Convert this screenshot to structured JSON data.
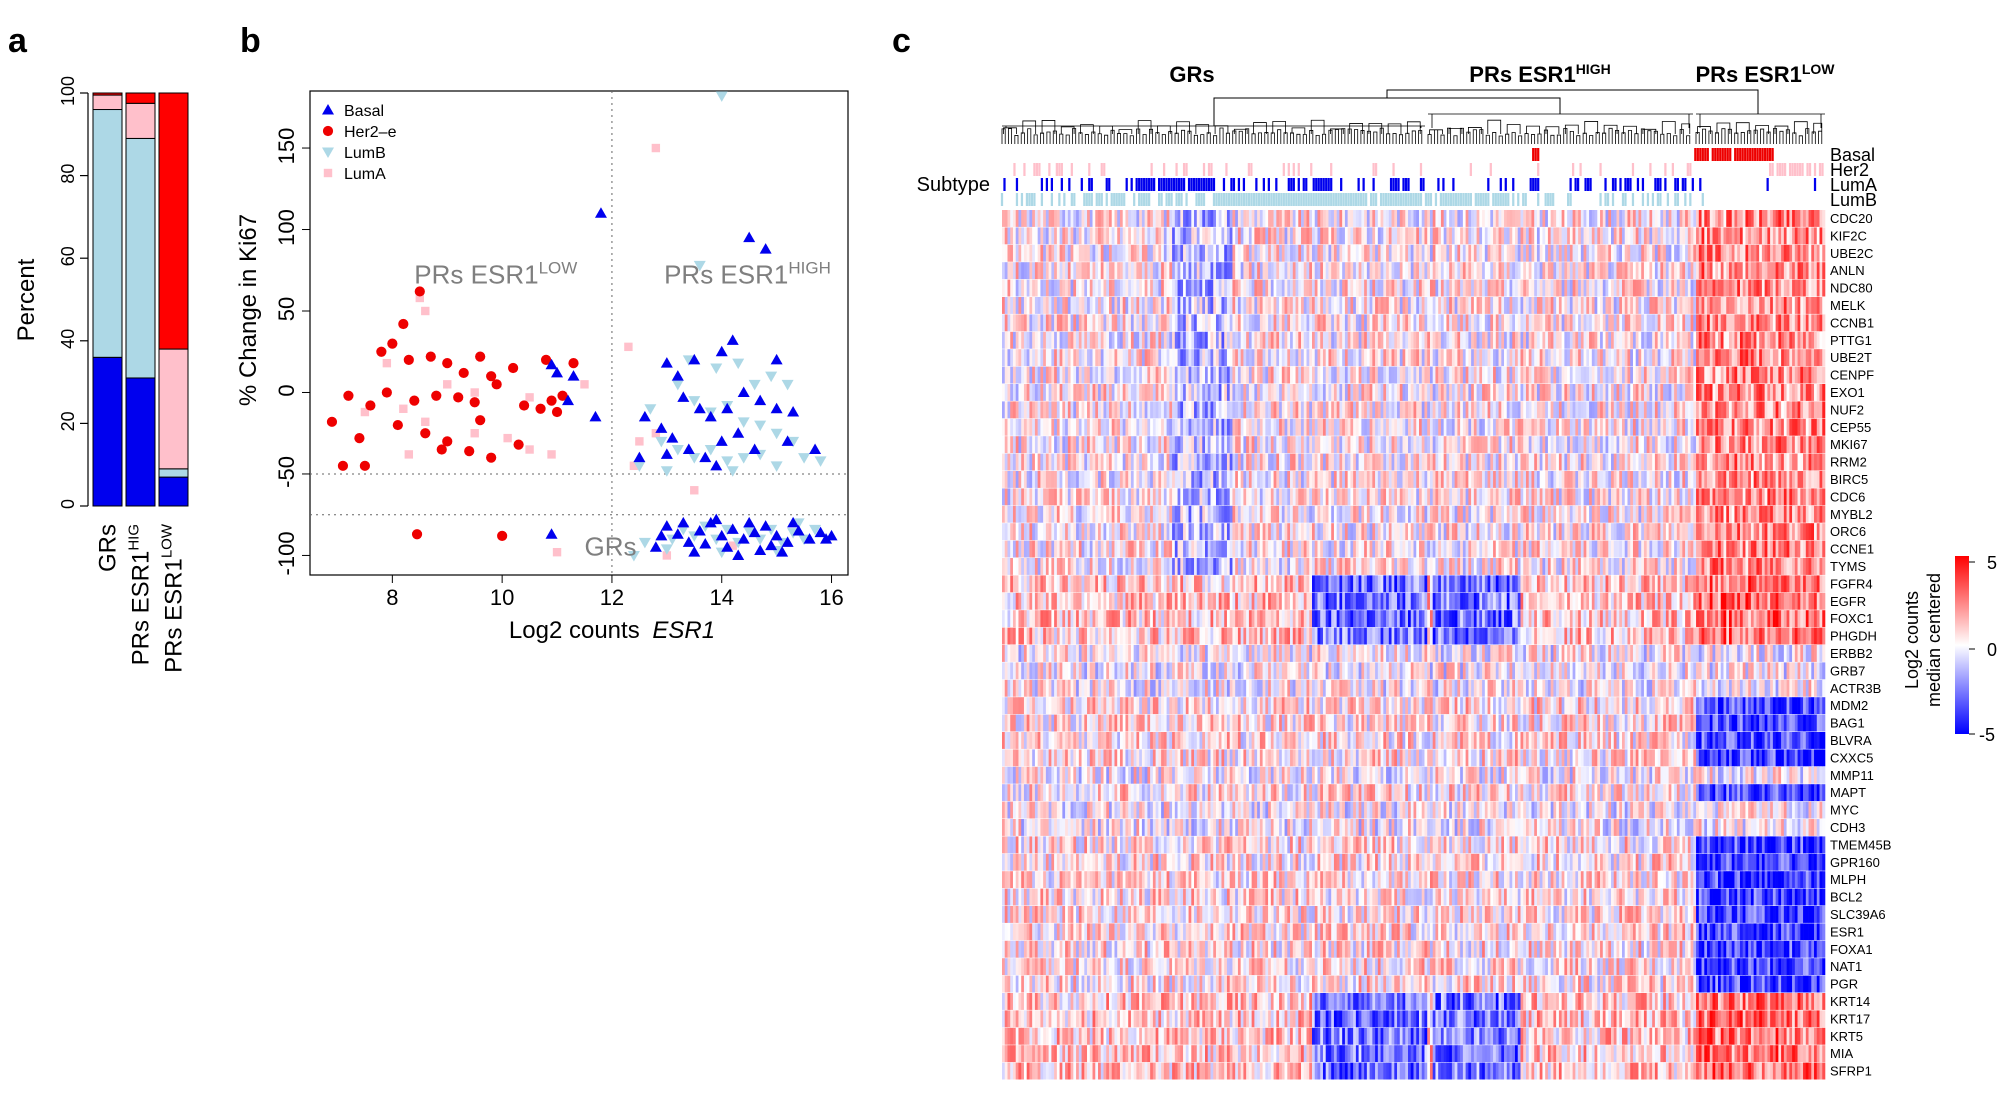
{
  "panel_labels": [
    "a",
    "b",
    "c"
  ],
  "chart_data": [
    {
      "id": "a",
      "type": "bar",
      "stacked": true,
      "ylabel": "Percent",
      "ylim": [
        0,
        100
      ],
      "yticks": [
        0,
        20,
        40,
        60,
        80,
        100
      ],
      "categories": [
        {
          "base": "GRs",
          "sup": ""
        },
        {
          "base": "PRs ESR1",
          "sup": "HIG"
        },
        {
          "base": "PRs ESR1",
          "sup": "LOW"
        }
      ],
      "series": [
        {
          "name": "Basal",
          "color": "#0000ee",
          "values": [
            36,
            31,
            7
          ]
        },
        {
          "name": "LumB",
          "color": "#add8e6",
          "values": [
            60,
            58,
            2
          ]
        },
        {
          "name": "LumA",
          "color": "#ffc0cb",
          "values": [
            3.5,
            8.5,
            29
          ]
        },
        {
          "name": "Her2-e",
          "color": "#ff0000",
          "values": [
            0.5,
            2.5,
            62
          ]
        }
      ]
    },
    {
      "id": "b",
      "type": "scatter",
      "xlabel": "Log2 counts",
      "xlabel_italic": "ESR1",
      "ylabel": "% Change in Ki67",
      "xlim": [
        6.5,
        16.3
      ],
      "ylim": [
        -112,
        185
      ],
      "xticks": [
        8,
        10,
        12,
        14,
        16
      ],
      "yticks": [
        -100,
        -50,
        0,
        50,
        100,
        150
      ],
      "vline": 12,
      "hlines": [
        -50,
        -75
      ],
      "region_labels": [
        {
          "text": "PRs ESR1",
          "sup": "LOW",
          "x": 8.4,
          "y": 67
        },
        {
          "text": "PRs ESR1",
          "sup": "HIGH",
          "x": 12.95,
          "y": 67
        },
        {
          "text": "GRs",
          "sup": "",
          "x": 11.5,
          "y": -100
        }
      ],
      "legend": [
        {
          "name": "Basal",
          "marker": "triangle-up",
          "color": "#0000ee"
        },
        {
          "name": "Her2–e",
          "marker": "circle",
          "color": "#ee0000"
        },
        {
          "name": "LumB",
          "marker": "triangle-down",
          "color": "#add8e6"
        },
        {
          "name": "LumA",
          "marker": "square",
          "color": "#ffc0cb"
        }
      ],
      "series": [
        {
          "name": "Basal",
          "marker": "triangle-up",
          "color": "#0000ee",
          "points": [
            [
              11.8,
              110
            ],
            [
              10.9,
              -87
            ],
            [
              11.0,
              12
            ],
            [
              11.2,
              -5
            ],
            [
              11.3,
              10
            ],
            [
              11.7,
              -15
            ],
            [
              10.9,
              17
            ],
            [
              13.0,
              18
            ],
            [
              13.2,
              10
            ],
            [
              13.5,
              20
            ],
            [
              14.0,
              25
            ],
            [
              14.2,
              32
            ],
            [
              14.5,
              95
            ],
            [
              14.8,
              88
            ],
            [
              15.0,
              20
            ],
            [
              13.3,
              -3
            ],
            [
              13.6,
              -10
            ],
            [
              13.8,
              -15
            ],
            [
              14.1,
              -10
            ],
            [
              14.4,
              0
            ],
            [
              14.7,
              -5
            ],
            [
              15.0,
              -10
            ],
            [
              15.3,
              -12
            ],
            [
              12.6,
              -15
            ],
            [
              12.9,
              -22
            ],
            [
              13.1,
              -28
            ],
            [
              13.4,
              -35
            ],
            [
              13.7,
              -40
            ],
            [
              14.0,
              -30
            ],
            [
              14.3,
              -25
            ],
            [
              14.6,
              -35
            ],
            [
              15.2,
              -30
            ],
            [
              15.7,
              -35
            ],
            [
              12.5,
              -40
            ],
            [
              13.0,
              -38
            ],
            [
              13.9,
              -45
            ],
            [
              15.9,
              -90
            ],
            [
              13.0,
              -82
            ],
            [
              13.2,
              -87
            ],
            [
              13.4,
              -92
            ],
            [
              13.6,
              -85
            ],
            [
              13.8,
              -80
            ],
            [
              14.0,
              -88
            ],
            [
              14.2,
              -84
            ],
            [
              14.4,
              -90
            ],
            [
              14.6,
              -86
            ],
            [
              14.8,
              -82
            ],
            [
              15.0,
              -88
            ],
            [
              15.2,
              -92
            ],
            [
              15.4,
              -85
            ],
            [
              15.6,
              -90
            ],
            [
              15.8,
              -86
            ],
            [
              16.0,
              -88
            ],
            [
              12.8,
              -95
            ],
            [
              13.3,
              -80
            ],
            [
              13.7,
              -93
            ],
            [
              14.1,
              -95
            ],
            [
              14.5,
              -80
            ],
            [
              14.9,
              -94
            ],
            [
              15.3,
              -80
            ],
            [
              13.5,
              -98
            ],
            [
              14.3,
              -100
            ],
            [
              15.1,
              -98
            ],
            [
              12.9,
              -88
            ],
            [
              13.9,
              -78
            ],
            [
              14.7,
              -97
            ]
          ]
        },
        {
          "name": "Her2-e",
          "marker": "circle",
          "color": "#ee0000",
          "points": [
            [
              8.5,
              62
            ],
            [
              8.2,
              42
            ],
            [
              8.0,
              30
            ],
            [
              7.8,
              25
            ],
            [
              8.3,
              20
            ],
            [
              8.7,
              22
            ],
            [
              9.0,
              18
            ],
            [
              9.3,
              12
            ],
            [
              9.6,
              22
            ],
            [
              9.8,
              10
            ],
            [
              10.2,
              15
            ],
            [
              10.8,
              20
            ],
            [
              11.3,
              18
            ],
            [
              7.2,
              -2
            ],
            [
              7.6,
              -8
            ],
            [
              7.9,
              0
            ],
            [
              8.4,
              -5
            ],
            [
              8.8,
              -2
            ],
            [
              9.2,
              -3
            ],
            [
              9.5,
              -6
            ],
            [
              9.9,
              5
            ],
            [
              10.4,
              -8
            ],
            [
              10.7,
              -10
            ],
            [
              11.0,
              -12
            ],
            [
              6.9,
              -18
            ],
            [
              7.4,
              -28
            ],
            [
              8.1,
              -20
            ],
            [
              8.6,
              -25
            ],
            [
              9.0,
              -30
            ],
            [
              9.4,
              -36
            ],
            [
              9.8,
              -40
            ],
            [
              10.3,
              -32
            ],
            [
              7.1,
              -45
            ],
            [
              7.5,
              -45
            ],
            [
              8.9,
              -35
            ],
            [
              10.0,
              -88
            ],
            [
              8.45,
              -87
            ],
            [
              9.6,
              -17
            ],
            [
              10.9,
              -5
            ],
            [
              11.1,
              -2
            ]
          ]
        },
        {
          "name": "LumB",
          "marker": "triangle-down",
          "color": "#add8e6",
          "points": [
            [
              14.0,
              182
            ],
            [
              13.6,
              78
            ],
            [
              13.4,
              20
            ],
            [
              13.9,
              15
            ],
            [
              14.3,
              18
            ],
            [
              14.6,
              5
            ],
            [
              14.9,
              10
            ],
            [
              15.2,
              5
            ],
            [
              13.2,
              5
            ],
            [
              13.5,
              -5
            ],
            [
              13.8,
              -12
            ],
            [
              14.1,
              -8
            ],
            [
              14.4,
              -18
            ],
            [
              14.7,
              -20
            ],
            [
              15.0,
              -25
            ],
            [
              15.3,
              -30
            ],
            [
              12.7,
              -10
            ],
            [
              12.9,
              -30
            ],
            [
              13.2,
              -35
            ],
            [
              13.5,
              -40
            ],
            [
              13.8,
              -35
            ],
            [
              14.1,
              -42
            ],
            [
              14.4,
              -40
            ],
            [
              14.7,
              -38
            ],
            [
              15.0,
              -45
            ],
            [
              15.5,
              -40
            ],
            [
              15.8,
              -42
            ],
            [
              12.5,
              -45
            ],
            [
              13.0,
              -48
            ],
            [
              14.2,
              -48
            ],
            [
              13.1,
              -90
            ],
            [
              13.3,
              -84
            ],
            [
              13.5,
              -88
            ],
            [
              13.7,
              -82
            ],
            [
              13.9,
              -90
            ],
            [
              14.1,
              -84
            ],
            [
              14.3,
              -92
            ],
            [
              14.5,
              -85
            ],
            [
              14.7,
              -90
            ],
            [
              14.9,
              -84
            ],
            [
              15.1,
              -92
            ],
            [
              15.3,
              -86
            ],
            [
              15.5,
              -90
            ],
            [
              15.7,
              -84
            ],
            [
              12.6,
              -92
            ],
            [
              13.0,
              -96
            ],
            [
              14.0,
              -98
            ],
            [
              15.0,
              -97
            ],
            [
              15.4,
              -80
            ],
            [
              12.4,
              -100
            ]
          ]
        },
        {
          "name": "LumA",
          "marker": "square",
          "color": "#ffc0cb",
          "points": [
            [
              12.8,
              150
            ],
            [
              8.5,
              58
            ],
            [
              8.6,
              50
            ],
            [
              12.3,
              28
            ],
            [
              7.9,
              18
            ],
            [
              9.0,
              5
            ],
            [
              9.5,
              0
            ],
            [
              10.5,
              -3
            ],
            [
              11.5,
              5
            ],
            [
              8.2,
              -10
            ],
            [
              7.5,
              -12
            ],
            [
              8.6,
              -18
            ],
            [
              9.5,
              -25
            ],
            [
              10.1,
              -28
            ],
            [
              10.5,
              -35
            ],
            [
              10.9,
              -38
            ],
            [
              8.3,
              -38
            ],
            [
              12.5,
              -30
            ],
            [
              12.8,
              -25
            ],
            [
              12.4,
              -45
            ],
            [
              13.5,
              -60
            ],
            [
              14.2,
              -94
            ],
            [
              13.0,
              -100
            ],
            [
              11.0,
              -98
            ]
          ]
        }
      ]
    },
    {
      "id": "c",
      "type": "heatmap",
      "groups": [
        {
          "name": "GRs",
          "sup": ""
        },
        {
          "name": "PRs ESR1",
          "sup": "HIGH"
        },
        {
          "name": "PRs ESR1",
          "sup": "LOW"
        }
      ],
      "subtype_label": "Subtype",
      "subtype_tracks": [
        {
          "name": "Basal",
          "color": "#ee0000"
        },
        {
          "name": "Her2",
          "color": "#ffc0cb"
        },
        {
          "name": "LumA",
          "color": "#0000ee"
        },
        {
          "name": "LumB",
          "color": "#add8e6"
        }
      ],
      "rows": [
        "CDC20",
        "KIF2C",
        "UBE2C",
        "ANLN",
        "NDC80",
        "MELK",
        "CCNB1",
        "PTTG1",
        "UBE2T",
        "CENPF",
        "EXO1",
        "NUF2",
        "CEP55",
        "MKI67",
        "RRM2",
        "BIRC5",
        "CDC6",
        "MYBL2",
        "ORC6",
        "CCNE1",
        "TYMS",
        "FGFR4",
        "EGFR",
        "FOXC1",
        "PHGDH",
        "ERBB2",
        "GRB7",
        "ACTR3B",
        "MDM2",
        "BAG1",
        "BLVRA",
        "CXXC5",
        "MMP11",
        "MAPT",
        "MYC",
        "CDH3",
        "TMEM45B",
        "GPR160",
        "MLPH",
        "BCL2",
        "SLC39A6",
        "ESR1",
        "FOXA1",
        "NAT1",
        "PGR",
        "KRT14",
        "KRT17",
        "KRT5",
        "MIA",
        "SFRP1"
      ],
      "color_scale": {
        "label_line1": "Log2 counts",
        "label_line2": "median centered",
        "max": 5,
        "mid": 0,
        "min": -5,
        "high_color": "#ff0000",
        "mid_color": "#ffffff",
        "low_color": "#0000ff"
      }
    }
  ]
}
